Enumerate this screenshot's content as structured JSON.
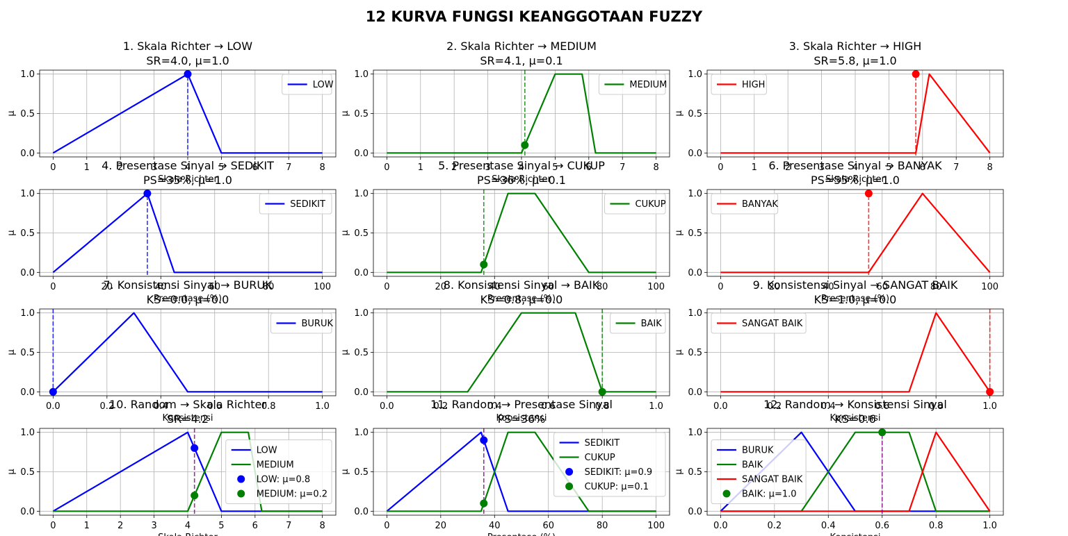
{
  "figure": {
    "suptitle": "12 KURVA FUNGSI KEANGGOTAAN FUZZY"
  },
  "colors": {
    "blue": "#0000ff",
    "green": "#008000",
    "red": "#ff0000",
    "purple": "#800080"
  },
  "chart_data": [
    {
      "type": "line",
      "title_lines": [
        "1. Skala Richter → LOW",
        "SR=4.0, μ=1.0"
      ],
      "xlabel": "Skala Richter",
      "ylabel": "μ",
      "xlim": [
        -0.4,
        8.4
      ],
      "ylim": [
        -0.05,
        1.05
      ],
      "xticks": [
        0,
        1,
        2,
        3,
        4,
        5,
        6,
        7,
        8
      ],
      "xticklabels": [
        "0",
        "1",
        "2",
        "3",
        "4",
        "5",
        "6",
        "7",
        "8"
      ],
      "yticks": [
        0,
        0.5,
        1
      ],
      "yticklabels": [
        "0.0",
        "0.5",
        "1.0"
      ],
      "grid": true,
      "legend_loc": "upper right",
      "series": [
        {
          "name": "LOW",
          "color": "blue",
          "x": [
            0,
            4,
            5,
            8
          ],
          "y": [
            0,
            1,
            0,
            0
          ]
        }
      ],
      "vlines": [
        {
          "x": 4.0,
          "color": "blue"
        }
      ],
      "points": [
        {
          "x": 4.0,
          "y": 1.0,
          "color": "blue"
        }
      ]
    },
    {
      "type": "line",
      "title_lines": [
        "2. Skala Richter → MEDIUM",
        "SR=4.1, μ=0.1"
      ],
      "xlabel": "Skala Richter",
      "ylabel": "μ",
      "xlim": [
        -0.4,
        8.4
      ],
      "ylim": [
        -0.05,
        1.05
      ],
      "xticks": [
        0,
        1,
        2,
        3,
        4,
        5,
        6,
        7,
        8
      ],
      "xticklabels": [
        "0",
        "1",
        "2",
        "3",
        "4",
        "5",
        "6",
        "7",
        "8"
      ],
      "yticks": [
        0,
        0.5,
        1
      ],
      "yticklabels": [
        "0.0",
        "0.5",
        "1.0"
      ],
      "grid": true,
      "legend_loc": "upper right",
      "series": [
        {
          "name": "MEDIUM",
          "color": "green",
          "x": [
            0,
            4,
            5,
            5.8,
            6.2,
            8
          ],
          "y": [
            0,
            0,
            1,
            1,
            0,
            0
          ]
        }
      ],
      "vlines": [
        {
          "x": 4.1,
          "color": "green"
        }
      ],
      "points": [
        {
          "x": 4.1,
          "y": 0.1,
          "color": "green"
        }
      ]
    },
    {
      "type": "line",
      "title_lines": [
        "3. Skala Richter → HIGH",
        "SR=5.8, μ=1.0"
      ],
      "xlabel": "Skala Richter",
      "ylabel": "μ",
      "xlim": [
        -0.4,
        8.4
      ],
      "ylim": [
        -0.05,
        1.05
      ],
      "xticks": [
        0,
        1,
        2,
        3,
        4,
        5,
        6,
        7,
        8
      ],
      "xticklabels": [
        "0",
        "1",
        "2",
        "3",
        "4",
        "5",
        "6",
        "7",
        "8"
      ],
      "yticks": [
        0,
        0.5,
        1
      ],
      "yticklabels": [
        "0.0",
        "0.5",
        "1.0"
      ],
      "grid": true,
      "legend_loc": "upper left",
      "series": [
        {
          "name": "HIGH",
          "color": "red",
          "x": [
            0,
            5.8,
            6.2,
            8
          ],
          "y": [
            0,
            0,
            1,
            0
          ]
        }
      ],
      "vlines": [
        {
          "x": 5.8,
          "color": "red"
        }
      ],
      "points": [
        {
          "x": 5.8,
          "y": 1.0,
          "color": "red"
        }
      ]
    },
    {
      "type": "line",
      "title_lines": [
        "4. Presentase Sinyal → SEDIKIT",
        "PS=35%, μ=1.0"
      ],
      "xlabel": "Presentase (%)",
      "ylabel": "μ",
      "xlim": [
        -5,
        105
      ],
      "ylim": [
        -0.05,
        1.05
      ],
      "xticks": [
        0,
        20,
        40,
        60,
        80,
        100
      ],
      "xticklabels": [
        "0",
        "20",
        "40",
        "60",
        "80",
        "100"
      ],
      "yticks": [
        0,
        0.5,
        1
      ],
      "yticklabels": [
        "0.0",
        "0.5",
        "1.0"
      ],
      "grid": true,
      "legend_loc": "upper right",
      "series": [
        {
          "name": "SEDIKIT",
          "color": "blue",
          "x": [
            0,
            35,
            45,
            100
          ],
          "y": [
            0,
            1,
            0,
            0
          ]
        }
      ],
      "vlines": [
        {
          "x": 35,
          "color": "blue"
        }
      ],
      "points": [
        {
          "x": 35,
          "y": 1.0,
          "color": "blue"
        }
      ]
    },
    {
      "type": "line",
      "title_lines": [
        "5. Presentase Sinyal → CUKUP",
        "PS=36%, μ=0.1"
      ],
      "xlabel": "Presentase (%)",
      "ylabel": "μ",
      "xlim": [
        -5,
        105
      ],
      "ylim": [
        -0.05,
        1.05
      ],
      "xticks": [
        0,
        20,
        40,
        60,
        80,
        100
      ],
      "xticklabels": [
        "0",
        "20",
        "40",
        "60",
        "80",
        "100"
      ],
      "yticks": [
        0,
        0.5,
        1
      ],
      "yticklabels": [
        "0.0",
        "0.5",
        "1.0"
      ],
      "grid": true,
      "legend_loc": "upper right",
      "series": [
        {
          "name": "CUKUP",
          "color": "green",
          "x": [
            0,
            35,
            45,
            55,
            75,
            100
          ],
          "y": [
            0,
            0,
            1,
            1,
            0,
            0
          ]
        }
      ],
      "vlines": [
        {
          "x": 36,
          "color": "green"
        }
      ],
      "points": [
        {
          "x": 36,
          "y": 0.1,
          "color": "green"
        }
      ]
    },
    {
      "type": "line",
      "title_lines": [
        "6. Presentase Sinyal → BANYAK",
        "PS=55%, μ=1.0"
      ],
      "xlabel": "Presentase (%)",
      "ylabel": "μ",
      "xlim": [
        -5,
        105
      ],
      "ylim": [
        -0.05,
        1.05
      ],
      "xticks": [
        0,
        20,
        40,
        60,
        80,
        100
      ],
      "xticklabels": [
        "0",
        "20",
        "40",
        "60",
        "80",
        "100"
      ],
      "yticks": [
        0,
        0.5,
        1
      ],
      "yticklabels": [
        "0.0",
        "0.5",
        "1.0"
      ],
      "grid": true,
      "legend_loc": "upper left",
      "series": [
        {
          "name": "BANYAK",
          "color": "red",
          "x": [
            0,
            55,
            75,
            100
          ],
          "y": [
            0,
            0,
            1,
            0
          ]
        }
      ],
      "vlines": [
        {
          "x": 55,
          "color": "red"
        }
      ],
      "points": [
        {
          "x": 55,
          "y": 1.0,
          "color": "red"
        }
      ]
    },
    {
      "type": "line",
      "title_lines": [
        "7. Konsistensi Sinyal → BURUK",
        "KS=0.0, μ=0.0"
      ],
      "xlabel": "Konsistensi",
      "ylabel": "μ",
      "xlim": [
        -0.05,
        1.05
      ],
      "ylim": [
        -0.05,
        1.05
      ],
      "xticks": [
        0,
        0.2,
        0.4,
        0.6,
        0.8,
        1
      ],
      "xticklabels": [
        "0.0",
        "0.2",
        "0.4",
        "0.6",
        "0.8",
        "1.0"
      ],
      "yticks": [
        0,
        0.5,
        1
      ],
      "yticklabels": [
        "0.0",
        "0.5",
        "1.0"
      ],
      "grid": true,
      "legend_loc": "upper right",
      "series": [
        {
          "name": "BURUK",
          "color": "blue",
          "x": [
            0,
            0.3,
            0.5,
            1
          ],
          "y": [
            0,
            1,
            0,
            0
          ]
        }
      ],
      "vlines": [
        {
          "x": 0.0,
          "color": "blue"
        }
      ],
      "points": [
        {
          "x": 0.0,
          "y": 0.0,
          "color": "blue"
        }
      ]
    },
    {
      "type": "line",
      "title_lines": [
        "8. Konsistensi Sinyal → BAIK",
        "KS=0.8, μ=0.0"
      ],
      "xlabel": "Konsistensi",
      "ylabel": "μ",
      "xlim": [
        -0.05,
        1.05
      ],
      "ylim": [
        -0.05,
        1.05
      ],
      "xticks": [
        0,
        0.2,
        0.4,
        0.6,
        0.8,
        1
      ],
      "xticklabels": [
        "0.0",
        "0.2",
        "0.4",
        "0.6",
        "0.8",
        "1.0"
      ],
      "yticks": [
        0,
        0.5,
        1
      ],
      "yticklabels": [
        "0.0",
        "0.5",
        "1.0"
      ],
      "grid": true,
      "legend_loc": "upper right",
      "series": [
        {
          "name": "BAIK",
          "color": "green",
          "x": [
            0,
            0.3,
            0.5,
            0.7,
            0.8,
            1
          ],
          "y": [
            0,
            0,
            1,
            1,
            0,
            0
          ]
        }
      ],
      "vlines": [
        {
          "x": 0.8,
          "color": "green"
        }
      ],
      "points": [
        {
          "x": 0.8,
          "y": 0.0,
          "color": "green"
        }
      ]
    },
    {
      "type": "line",
      "title_lines": [
        "9. Konsistensi Sinyal → SANGAT BAIK",
        "KS=1.0, μ=0.0"
      ],
      "xlabel": "Konsistensi",
      "ylabel": "μ",
      "xlim": [
        -0.05,
        1.05
      ],
      "ylim": [
        -0.05,
        1.05
      ],
      "xticks": [
        0,
        0.2,
        0.4,
        0.6,
        0.8,
        1
      ],
      "xticklabels": [
        "0.0",
        "0.2",
        "0.4",
        "0.6",
        "0.8",
        "1.0"
      ],
      "yticks": [
        0,
        0.5,
        1
      ],
      "yticklabels": [
        "0.0",
        "0.5",
        "1.0"
      ],
      "grid": true,
      "legend_loc": "upper left",
      "series": [
        {
          "name": "SANGAT BAIK",
          "color": "red",
          "x": [
            0,
            0.7,
            0.8,
            1
          ],
          "y": [
            0,
            0,
            1,
            0
          ]
        }
      ],
      "vlines": [
        {
          "x": 1.0,
          "color": "red"
        }
      ],
      "points": [
        {
          "x": 1.0,
          "y": 0.0,
          "color": "red"
        }
      ]
    },
    {
      "type": "line",
      "title_lines": [
        "10. Random → Skala Richter",
        "SR=4.2"
      ],
      "xlabel": "Skala Richter",
      "ylabel": "μ",
      "xlim": [
        -0.4,
        8.4
      ],
      "ylim": [
        -0.05,
        1.05
      ],
      "xticks": [
        0,
        1,
        2,
        3,
        4,
        5,
        6,
        7,
        8
      ],
      "xticklabels": [
        "0",
        "1",
        "2",
        "3",
        "4",
        "5",
        "6",
        "7",
        "8"
      ],
      "yticks": [
        0,
        0.5,
        1
      ],
      "yticklabels": [
        "0.0",
        "0.5",
        "1.0"
      ],
      "grid": true,
      "legend_loc": "center right",
      "series": [
        {
          "name": "LOW",
          "color": "blue",
          "x": [
            0,
            4,
            5,
            8
          ],
          "y": [
            0,
            1,
            0,
            0
          ]
        },
        {
          "name": "MEDIUM",
          "color": "green",
          "x": [
            0,
            4,
            5,
            5.8,
            6.2,
            8
          ],
          "y": [
            0,
            0,
            1,
            1,
            0,
            0
          ]
        }
      ],
      "vlines": [
        {
          "x": 4.2,
          "color": "purple"
        }
      ],
      "points": [
        {
          "x": 4.2,
          "y": 0.8,
          "color": "blue",
          "label": "LOW: μ=0.8"
        },
        {
          "x": 4.2,
          "y": 0.2,
          "color": "green",
          "label": "MEDIUM: μ=0.2"
        }
      ]
    },
    {
      "type": "line",
      "title_lines": [
        "11. Random → Presentase Sinyal",
        "PS=36%"
      ],
      "xlabel": "Presentase (%)",
      "ylabel": "μ",
      "xlim": [
        -5,
        105
      ],
      "ylim": [
        -0.05,
        1.05
      ],
      "xticks": [
        0,
        20,
        40,
        60,
        80,
        100
      ],
      "xticklabels": [
        "0",
        "20",
        "40",
        "60",
        "80",
        "100"
      ],
      "yticks": [
        0,
        0.5,
        1
      ],
      "yticklabels": [
        "0.0",
        "0.5",
        "1.0"
      ],
      "grid": true,
      "legend_loc": "upper right",
      "series": [
        {
          "name": "SEDIKIT",
          "color": "blue",
          "x": [
            0,
            35,
            45,
            100
          ],
          "y": [
            0,
            1,
            0,
            0
          ]
        },
        {
          "name": "CUKUP",
          "color": "green",
          "x": [
            0,
            35,
            45,
            55,
            75,
            100
          ],
          "y": [
            0,
            0,
            1,
            1,
            0,
            0
          ]
        }
      ],
      "vlines": [
        {
          "x": 36,
          "color": "purple"
        }
      ],
      "points": [
        {
          "x": 36,
          "y": 0.9,
          "color": "blue",
          "label": "SEDIKIT: μ=0.9"
        },
        {
          "x": 36,
          "y": 0.1,
          "color": "green",
          "label": "CUKUP: μ=0.1"
        }
      ]
    },
    {
      "type": "line",
      "title_lines": [
        "12. Random → Konsistensi Sinyal",
        "KS=0.6"
      ],
      "xlabel": "Konsistensi",
      "ylabel": "μ",
      "xlim": [
        -0.05,
        1.05
      ],
      "ylim": [
        -0.05,
        1.05
      ],
      "xticks": [
        0,
        0.2,
        0.4,
        0.6,
        0.8,
        1
      ],
      "xticklabels": [
        "0.0",
        "0.2",
        "0.4",
        "0.6",
        "0.8",
        "1.0"
      ],
      "yticks": [
        0,
        0.5,
        1
      ],
      "yticklabels": [
        "0.0",
        "0.5",
        "1.0"
      ],
      "grid": true,
      "legend_loc": "center left",
      "series": [
        {
          "name": "BURUK",
          "color": "blue",
          "x": [
            0,
            0.3,
            0.5,
            1
          ],
          "y": [
            0,
            1,
            0,
            0
          ]
        },
        {
          "name": "BAIK",
          "color": "green",
          "x": [
            0,
            0.3,
            0.5,
            0.7,
            0.8,
            1
          ],
          "y": [
            0,
            0,
            1,
            1,
            0,
            0
          ]
        },
        {
          "name": "SANGAT BAIK",
          "color": "red",
          "x": [
            0,
            0.7,
            0.8,
            1
          ],
          "y": [
            0,
            0,
            1,
            0
          ]
        }
      ],
      "vlines": [
        {
          "x": 0.6,
          "color": "purple"
        }
      ],
      "points": [
        {
          "x": 0.6,
          "y": 1.0,
          "color": "green",
          "label": "BAIK: μ=1.0"
        }
      ]
    }
  ]
}
